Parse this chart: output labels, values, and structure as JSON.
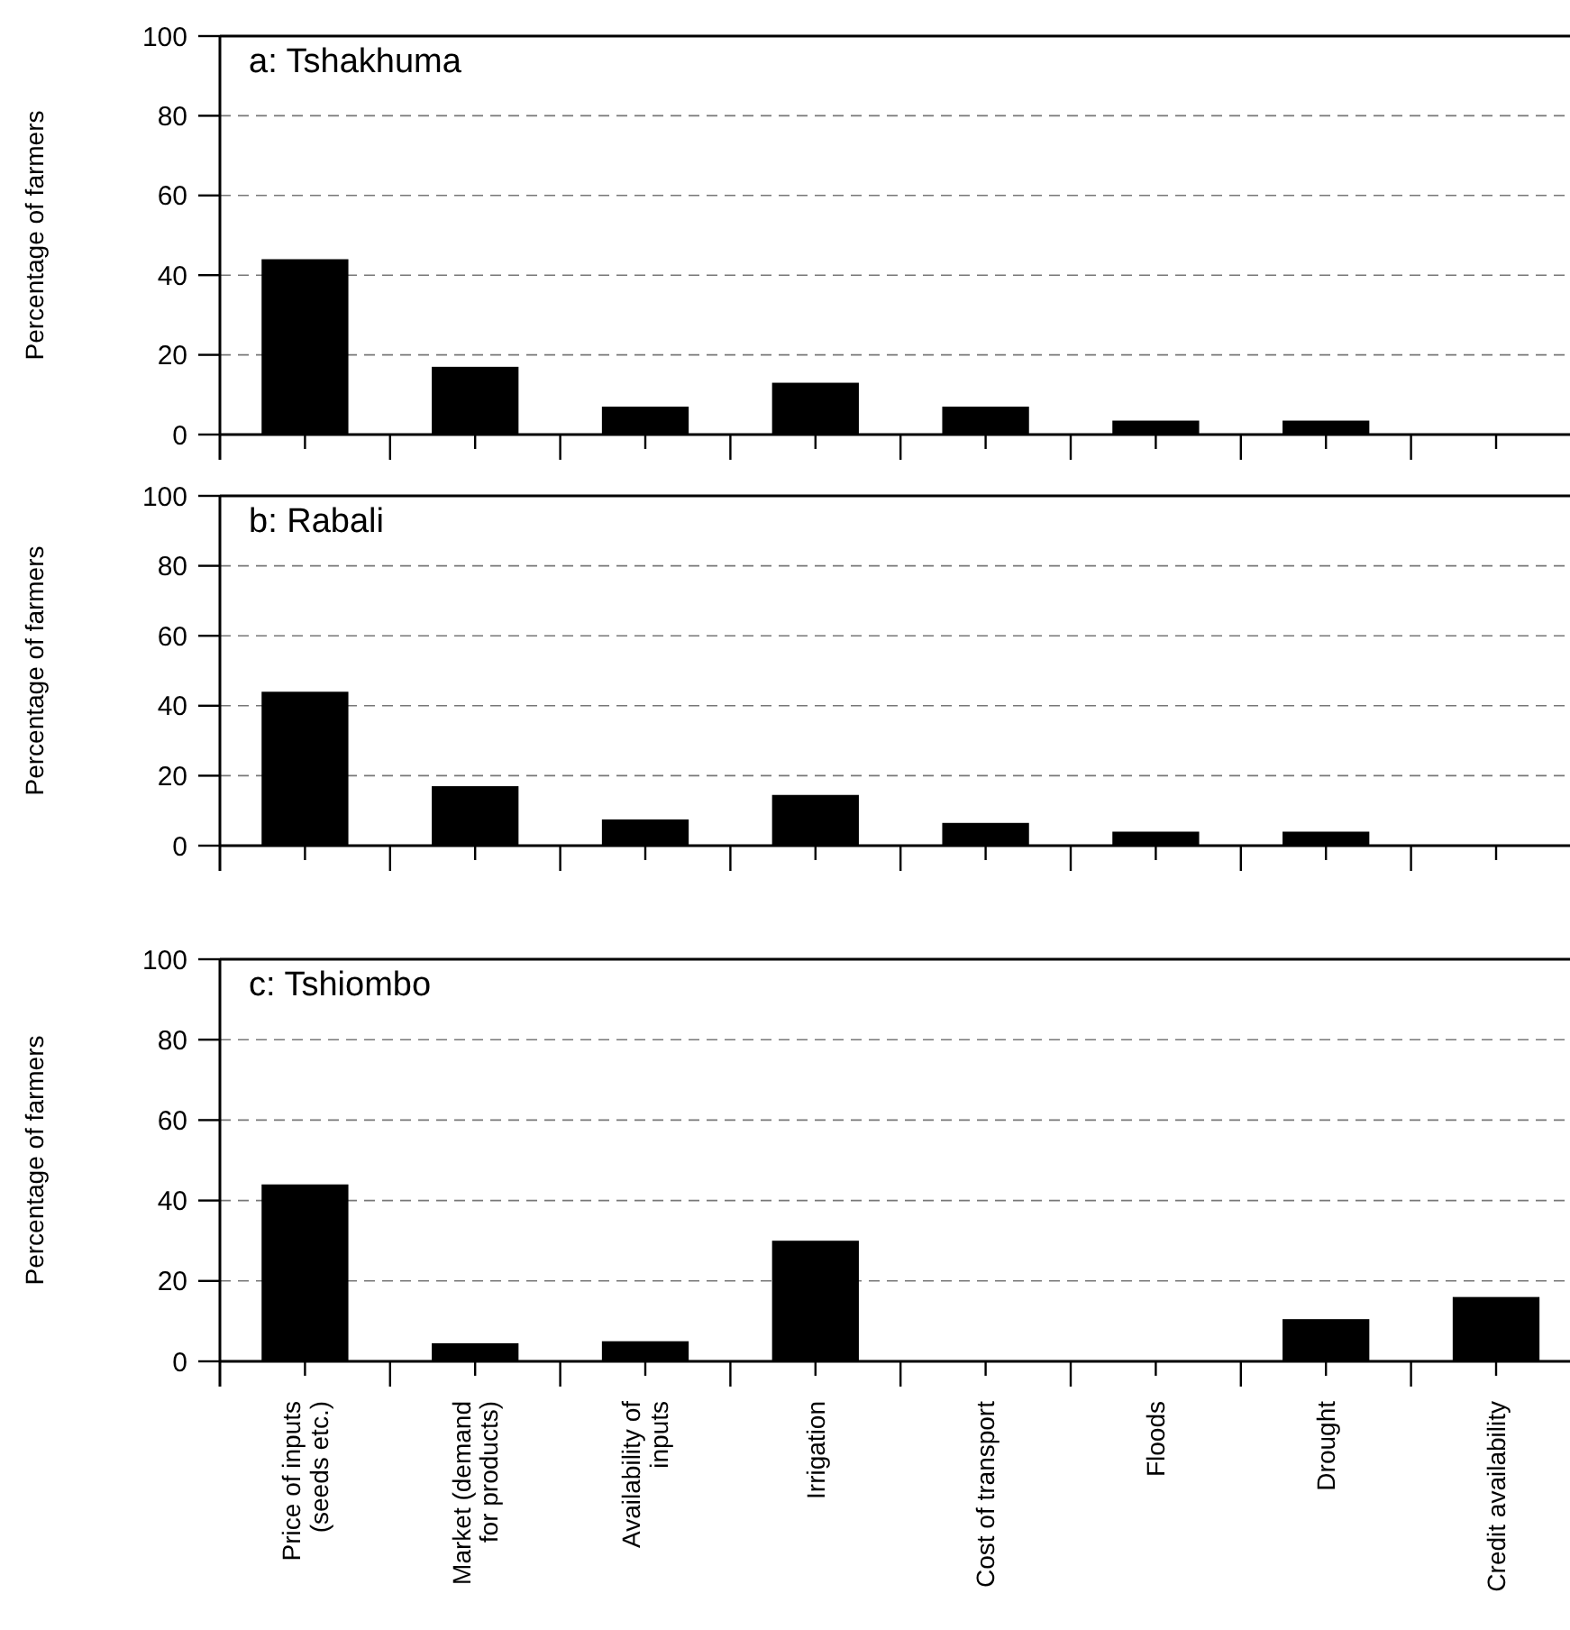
{
  "chart_data": [
    {
      "type": "bar",
      "title": "a: Tshakhuma",
      "ylabel": "Percentage of farmers",
      "values": [
        44,
        17,
        7,
        13,
        7,
        3.5,
        3.5,
        0
      ],
      "color": "#000000",
      "ylim": [
        0,
        100
      ],
      "yticks": [
        0,
        20,
        40,
        60,
        80,
        100
      ],
      "grid": "y",
      "tick_labels": "y"
    },
    {
      "type": "bar",
      "title": "b: Rabali",
      "ylabel": "Percentage of farmers",
      "values": [
        44,
        17,
        7.5,
        14.5,
        6.5,
        4,
        4,
        0
      ],
      "color": "#000000",
      "ylim": [
        0,
        100
      ],
      "yticks": [
        0,
        20,
        40,
        60,
        80,
        100
      ],
      "grid": "y",
      "tick_labels": "y"
    },
    {
      "type": "bar",
      "title": "c: Tshiombo",
      "ylabel": "Percentage of farmers",
      "categories": [
        "Price of inputs\n(seeds etc.)",
        "Market (demand\nfor products)",
        "Availability of\ninputs",
        "Irrigation",
        "Cost of transport",
        "Floods",
        "Drought",
        "Credit availability"
      ],
      "values": [
        44,
        4.5,
        5,
        30,
        0,
        0,
        10.5,
        16
      ],
      "color": "#000000",
      "ylim": [
        0,
        100
      ],
      "yticks": [
        0,
        20,
        40,
        60,
        80,
        100
      ],
      "grid": "y"
    }
  ]
}
